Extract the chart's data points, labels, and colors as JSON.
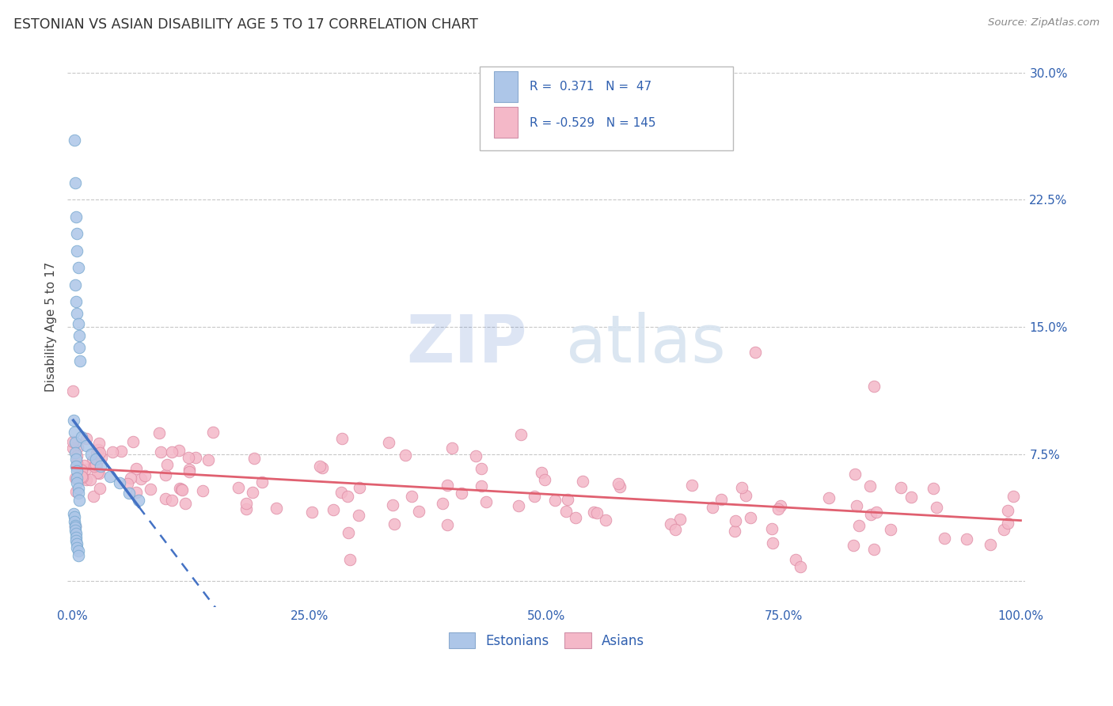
{
  "title": "ESTONIAN VS ASIAN DISABILITY AGE 5 TO 17 CORRELATION CHART",
  "source_text": "Source: ZipAtlas.com",
  "ylabel": "Disability Age 5 to 17",
  "xlim": [
    -0.005,
    1.005
  ],
  "ylim": [
    -0.015,
    0.315
  ],
  "x_ticks": [
    0.0,
    0.25,
    0.5,
    0.75,
    1.0
  ],
  "x_tick_labels": [
    "0.0%",
    "25.0%",
    "50.0%",
    "75.0%",
    "100.0%"
  ],
  "y_ticks": [
    0.0,
    0.075,
    0.15,
    0.225,
    0.3
  ],
  "y_tick_labels": [
    "",
    "7.5%",
    "15.0%",
    "22.5%",
    "30.0%"
  ],
  "grid_color": "#c8c8c8",
  "background_color": "#ffffff",
  "estonian_color": "#adc6e8",
  "estonian_edge_color": "#7aaad0",
  "estonian_line_color": "#4472c4",
  "asian_color": "#f4b8c8",
  "asian_edge_color": "#e090a8",
  "asian_line_color": "#e06070",
  "title_color": "#333333",
  "axis_label_color": "#444444",
  "tick_color": "#3060b0",
  "watermark_zip": "ZIP",
  "watermark_atlas": "atlas",
  "watermark_color": "#d8e4f0",
  "legend_text_color": "#3060b0"
}
